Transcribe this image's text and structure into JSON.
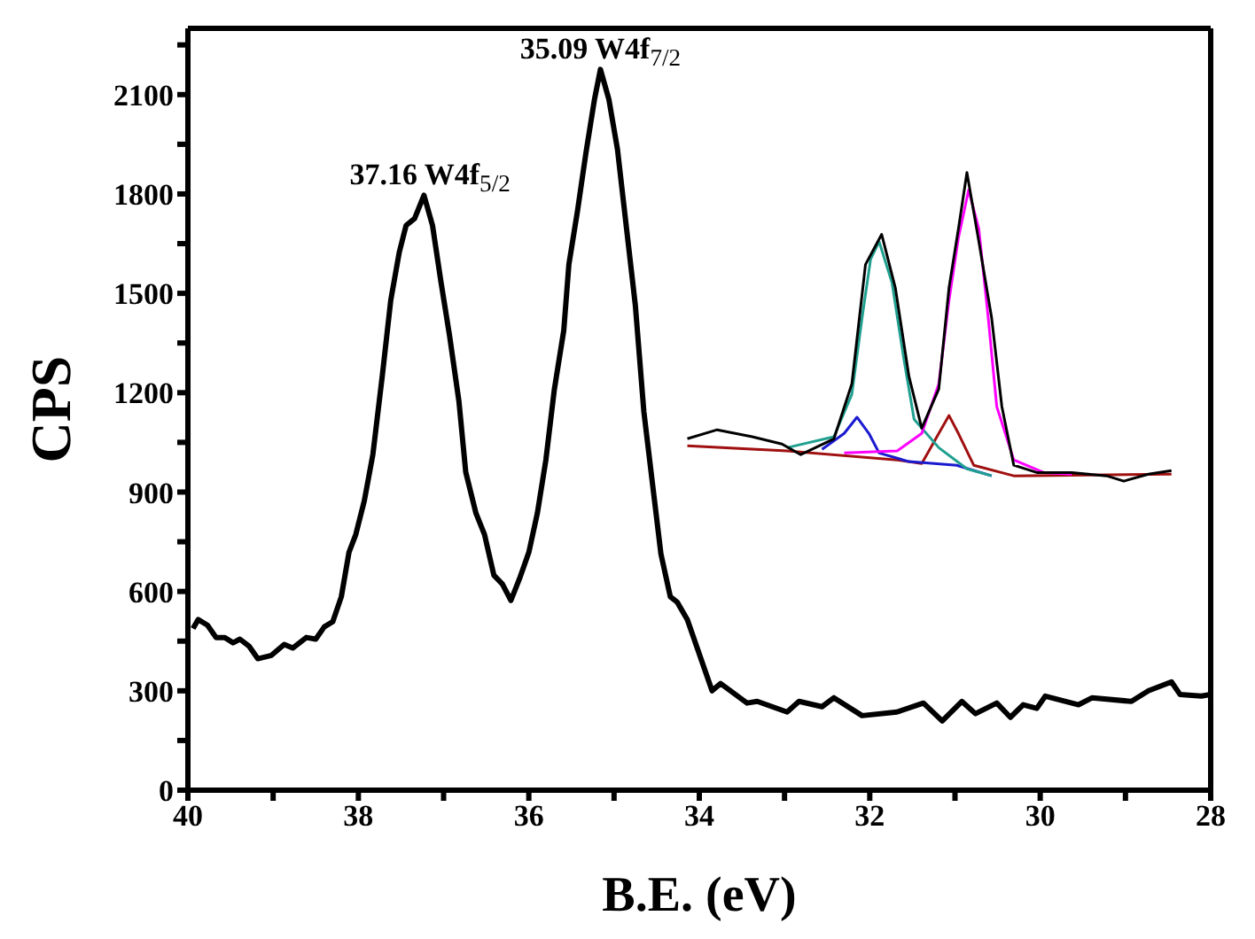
{
  "chart_data": {
    "type": "line",
    "xlabel": "B.E. (eV)",
    "ylabel": "CPS",
    "xlim": [
      40,
      28
    ],
    "xticks": [
      40,
      {
        "value": 39,
        "label": null
      },
      38,
      {
        "value": 37,
        "label": null
      },
      36,
      {
        "value": 35,
        "label": null
      },
      34,
      {
        "value": 33,
        "label": null
      },
      32,
      {
        "value": 31,
        "label": null
      },
      30,
      {
        "value": 29,
        "label": null
      },
      28
    ],
    "ylim": [
      0,
      2300
    ],
    "yticks": [
      0,
      {
        "value": 150,
        "label": null
      },
      300,
      {
        "value": 450,
        "label": null
      },
      600,
      {
        "value": 750,
        "label": null
      },
      900,
      {
        "value": 1050,
        "label": null
      },
      1200,
      {
        "value": 1350,
        "label": null
      },
      1500,
      {
        "value": 1650,
        "label": null
      },
      1800,
      {
        "value": 1950,
        "label": null
      },
      2100,
      {
        "value": 2250,
        "label": null
      }
    ],
    "grid": false,
    "legend": false,
    "marker": "none",
    "line_style": "solid",
    "annotations": [
      {
        "text": "37.16  W4f$_{5/2}$",
        "x": 37.16,
        "y": 1796
      },
      {
        "text": "35.09  W4f$_{7/2}$",
        "x": 35.16,
        "y": 2176
      }
    ],
    "series": [
      {
        "color": "#000000",
        "x": [
          39.94,
          39.88,
          39.77,
          39.67,
          39.57,
          39.47,
          39.39,
          39.28,
          39.18,
          39.02,
          38.87,
          38.77,
          38.61,
          38.5,
          38.4,
          38.3,
          38.2,
          38.11,
          38.03,
          37.93,
          37.83,
          37.72,
          37.62,
          37.52,
          37.44,
          37.34,
          37.23,
          37.13,
          37.03,
          36.93,
          36.82,
          36.74,
          36.62,
          36.52,
          36.41,
          36.31,
          36.21,
          36.11,
          36.0,
          35.9,
          35.8,
          35.7,
          35.59,
          35.53,
          35.43,
          35.33,
          35.23,
          35.16,
          35.06,
          34.96,
          34.86,
          34.75,
          34.65,
          34.55,
          34.45,
          34.34,
          34.26,
          34.14,
          33.85,
          33.75,
          33.44,
          33.32,
          32.97,
          32.83,
          32.56,
          32.42,
          32.09,
          31.68,
          31.37,
          31.15,
          30.92,
          30.76,
          30.51,
          30.35,
          30.2,
          30.04,
          29.94,
          29.55,
          29.39,
          28.93,
          28.73,
          28.46,
          28.36,
          28.11,
          28.0
        ],
        "values": [
          488,
          515,
          498,
          461,
          461,
          445,
          456,
          434,
          397,
          407,
          440,
          429,
          461,
          456,
          493,
          509,
          584,
          718,
          772,
          874,
          1013,
          1249,
          1479,
          1624,
          1705,
          1726,
          1796,
          1705,
          1533,
          1372,
          1174,
          960,
          836,
          772,
          649,
          622,
          573,
          638,
          718,
          836,
          997,
          1211,
          1388,
          1587,
          1747,
          1924,
          2085,
          2176,
          2085,
          1935,
          1710,
          1463,
          1142,
          927,
          713,
          584,
          568,
          515,
          300,
          322,
          263,
          268,
          236,
          268,
          252,
          279,
          225,
          236,
          263,
          209,
          268,
          231,
          263,
          220,
          258,
          247,
          284,
          258,
          279,
          268,
          300,
          327,
          289,
          284,
          289
        ]
      },
      {
        "color": "#a01010",
        "x": [
          34.14,
          32.97,
          31.68,
          31.39,
          31.19,
          31.07,
          30.96,
          30.78,
          30.31,
          28.46
        ],
        "values": [
          1040,
          1024,
          997,
          986,
          1077,
          1131,
          1077,
          981,
          949,
          954
        ]
      },
      {
        "color": "#1a1ad0",
        "x": [
          32.56,
          32.3,
          32.15,
          32.01,
          31.89,
          31.54,
          30.98,
          30.57
        ],
        "values": [
          1029,
          1077,
          1126,
          1077,
          1018,
          992,
          981,
          949
        ]
      },
      {
        "color": "#20a090",
        "x": [
          32.97,
          32.42,
          32.21,
          32.09,
          31.99,
          31.89,
          31.74,
          31.6,
          31.48,
          31.19,
          30.86,
          30.57
        ],
        "values": [
          1034,
          1067,
          1195,
          1426,
          1603,
          1656,
          1533,
          1302,
          1120,
          1034,
          970,
          949
        ]
      },
      {
        "color": "#ff00ff",
        "x": [
          32.3,
          31.68,
          31.39,
          31.19,
          31.07,
          30.96,
          30.84,
          30.72,
          30.61,
          30.51,
          30.31,
          29.96,
          29.63
        ],
        "values": [
          1018,
          1024,
          1077,
          1227,
          1479,
          1667,
          1812,
          1694,
          1426,
          1158,
          997,
          959,
          954
        ]
      },
      {
        "color": "#000000",
        "x": [
          34.14,
          33.79,
          33.38,
          33.03,
          32.81,
          32.42,
          32.21,
          32.05,
          31.86,
          31.7,
          31.54,
          31.39,
          31.19,
          31.07,
          30.96,
          30.86,
          30.72,
          30.57,
          30.45,
          30.31,
          30.04,
          29.63,
          29.22,
          29.02,
          28.73,
          28.46
        ],
        "values": [
          1061,
          1088,
          1067,
          1045,
          1013,
          1061,
          1227,
          1587,
          1678,
          1517,
          1249,
          1093,
          1211,
          1517,
          1694,
          1865,
          1656,
          1426,
          1158,
          981,
          959,
          959,
          949,
          933,
          954,
          965
        ]
      }
    ]
  }
}
